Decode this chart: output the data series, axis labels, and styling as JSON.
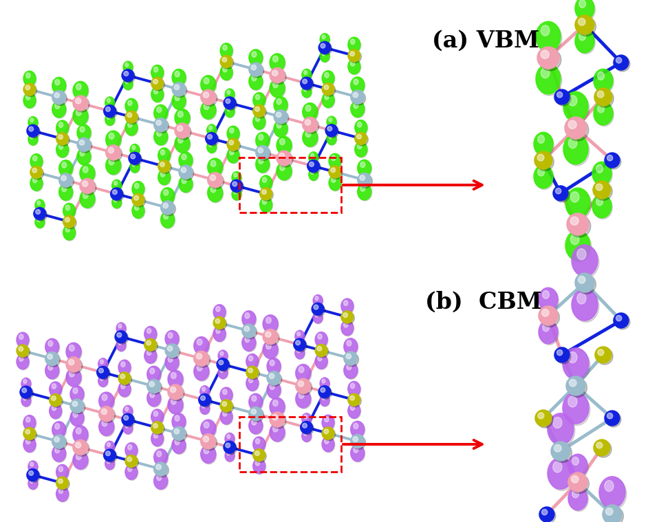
{
  "title_a": "(a) VBM",
  "title_b": "(b)  CBM",
  "title_fontsize": 24,
  "bg_color": "#ffffff",
  "arrow_color": "#ee0000",
  "dashed_rect_color": "#ee0000",
  "vbm_orbital_color": "#33ee00",
  "cbm_orbital_color": "#bb66ee",
  "atom_pink": "#f0a0b0",
  "atom_blue": "#1122dd",
  "atom_yellow": "#bbbb00",
  "atom_lightblue": "#99bbcc",
  "bond_pink": "#f0a8b8",
  "bond_blue": "#2233cc",
  "bond_lightblue": "#99bbcc"
}
